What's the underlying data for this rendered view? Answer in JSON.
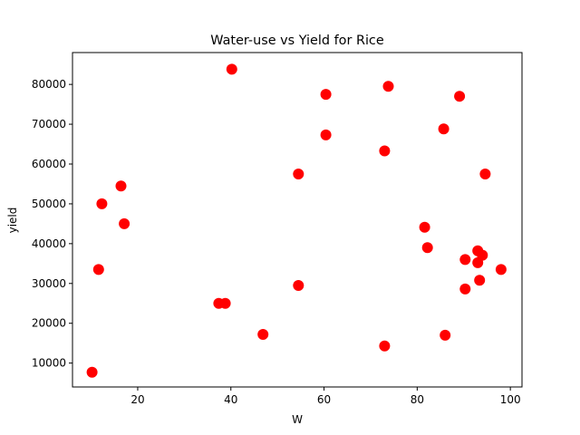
{
  "chart_data": {
    "type": "scatter",
    "title": "Water-use vs Yield for Rice",
    "xlabel": "W",
    "ylabel": "yield",
    "xlim": [
      6,
      102.5
    ],
    "ylim": [
      4000,
      88000
    ],
    "xticks": [
      20,
      40,
      60,
      80,
      100
    ],
    "yticks": [
      10000,
      20000,
      30000,
      40000,
      50000,
      60000,
      70000,
      80000
    ],
    "xtick_labels": [
      "20",
      "40",
      "60",
      "80",
      "100"
    ],
    "ytick_labels": [
      "10000",
      "20000",
      "30000",
      "40000",
      "50000",
      "60000",
      "70000",
      "80000"
    ],
    "grid": false,
    "marker_color": "#ff0000",
    "points": [
      {
        "x": 10.2,
        "y": 7700
      },
      {
        "x": 11.6,
        "y": 33500
      },
      {
        "x": 12.3,
        "y": 50000
      },
      {
        "x": 16.4,
        "y": 54500
      },
      {
        "x": 17.1,
        "y": 45000
      },
      {
        "x": 37.4,
        "y": 25000
      },
      {
        "x": 38.8,
        "y": 25000
      },
      {
        "x": 40.2,
        "y": 83800
      },
      {
        "x": 46.9,
        "y": 17200
      },
      {
        "x": 54.5,
        "y": 57500
      },
      {
        "x": 54.5,
        "y": 29500
      },
      {
        "x": 60.4,
        "y": 77500
      },
      {
        "x": 60.4,
        "y": 67300
      },
      {
        "x": 73.0,
        "y": 63300
      },
      {
        "x": 73.0,
        "y": 14300
      },
      {
        "x": 73.8,
        "y": 79500
      },
      {
        "x": 81.6,
        "y": 44100
      },
      {
        "x": 82.2,
        "y": 39000
      },
      {
        "x": 85.7,
        "y": 68800
      },
      {
        "x": 86.0,
        "y": 17000
      },
      {
        "x": 89.1,
        "y": 77000
      },
      {
        "x": 90.3,
        "y": 36000
      },
      {
        "x": 90.3,
        "y": 28600
      },
      {
        "x": 93.0,
        "y": 38200
      },
      {
        "x": 93.0,
        "y": 35200
      },
      {
        "x": 93.4,
        "y": 30800
      },
      {
        "x": 94.0,
        "y": 37100
      },
      {
        "x": 94.6,
        "y": 57500
      },
      {
        "x": 98.0,
        "y": 33500
      }
    ]
  }
}
